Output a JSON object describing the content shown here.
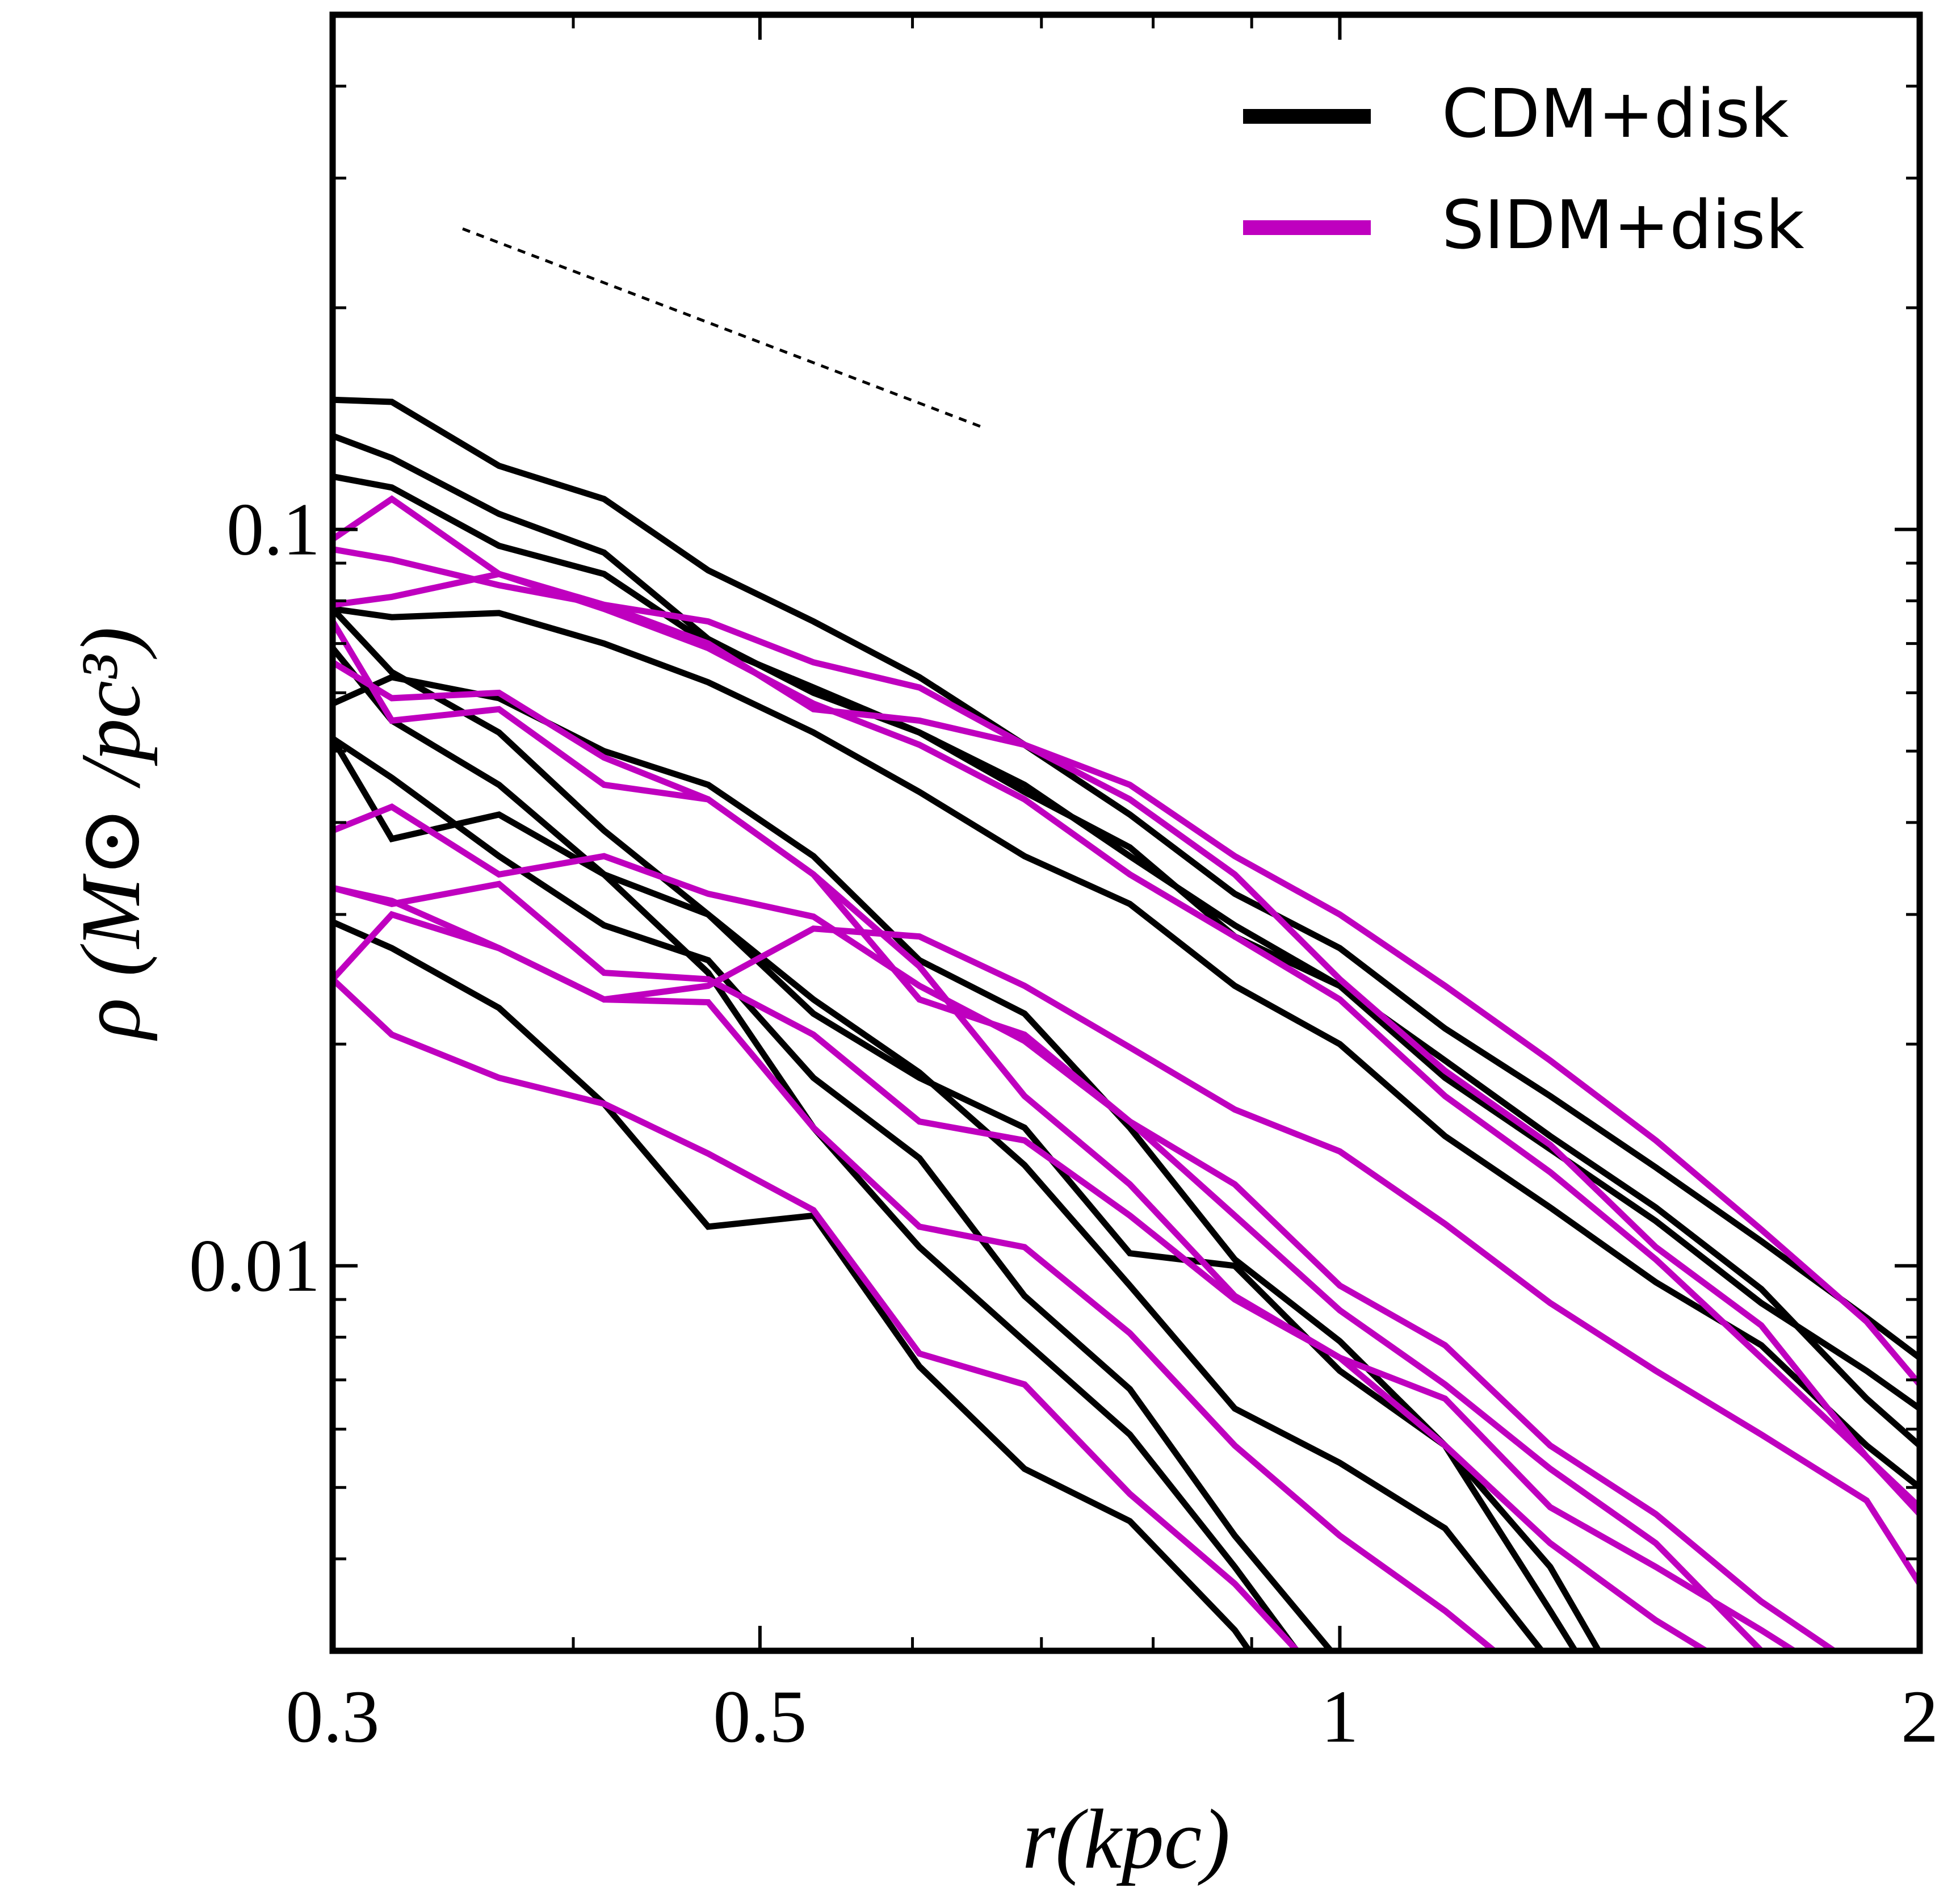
{
  "chart_data": {
    "type": "line",
    "x_label": "r(kpc)",
    "y_label": "ρ (M⊙ /pc³)",
    "xlog": true,
    "ylog": true,
    "xlim": [
      0.3,
      2
    ],
    "ylim": [
      0.003,
      0.5
    ],
    "xticks": [
      0.3,
      0.5,
      1,
      2
    ],
    "xminorticks": [
      0.4,
      0.6,
      0.7,
      0.8,
      0.9
    ],
    "yticks": [
      0.01,
      0.1
    ],
    "yminorticks": [
      0.004,
      0.005,
      0.006,
      0.007,
      0.008,
      0.009,
      0.02,
      0.03,
      0.04,
      0.05,
      0.06,
      0.07,
      0.08,
      0.09,
      0.2,
      0.3,
      0.4
    ],
    "legend": "upper right",
    "x": [
      0.3,
      0.322,
      0.366,
      0.415,
      0.47,
      0.533,
      0.605,
      0.686,
      0.778,
      0.882,
      1.0,
      1.134,
      1.286,
      1.459,
      1.655,
      1.877,
      2.0
    ],
    "series": [
      {
        "name": "CDM+disk",
        "color": "#000000",
        "lines": [
          [
            0.15,
            0.149,
            0.122,
            0.11,
            0.088,
            0.075,
            0.063,
            0.051,
            0.041,
            0.032,
            0.027,
            0.021,
            0.017,
            0.0136,
            0.0108,
            0.0085,
            0.0075
          ],
          [
            0.134,
            0.125,
            0.105,
            0.093,
            0.071,
            0.06,
            0.053,
            0.045,
            0.036,
            0.029,
            0.024,
            0.018,
            0.0144,
            0.0115,
            0.0089,
            0.0072,
            0.0064
          ],
          [
            0.118,
            0.114,
            0.095,
            0.087,
            0.07,
            0.061,
            0.053,
            0.044,
            0.037,
            0.028,
            0.024,
            0.019,
            0.015,
            0.012,
            0.0093,
            0.0066,
            0.0057
          ],
          [
            0.078,
            0.076,
            0.077,
            0.07,
            0.062,
            0.053,
            0.044,
            0.036,
            0.031,
            0.024,
            0.02,
            0.015,
            0.012,
            0.0095,
            0.0078,
            0.0057,
            0.005
          ],
          [
            0.058,
            0.063,
            0.059,
            0.05,
            0.045,
            0.036,
            0.026,
            0.022,
            0.0154,
            0.0102,
            0.0079,
            0.0057,
            0.0034,
            0.002,
            null,
            null,
            null
          ],
          [
            0.078,
            0.064,
            0.053,
            0.039,
            0.03,
            0.022,
            0.018,
            0.0154,
            0.0104,
            0.01,
            0.0072,
            0.0057,
            0.0039,
            0.0022,
            null,
            null,
            null
          ],
          [
            0.052,
            0.046,
            0.036,
            0.029,
            0.026,
            0.018,
            0.014,
            0.0091,
            0.0068,
            0.0043,
            0.0029,
            null,
            null,
            null,
            null,
            null,
            null
          ],
          [
            0.069,
            0.055,
            0.045,
            0.034,
            0.025,
            0.0154,
            0.0106,
            0.0079,
            0.0059,
            0.0039,
            0.0025,
            null,
            null,
            null,
            null,
            null,
            null
          ],
          [
            0.0293,
            0.027,
            0.0224,
            0.0166,
            0.0113,
            0.0117,
            0.0073,
            0.0053,
            0.0045,
            0.0032,
            0.002,
            null,
            null,
            null,
            null,
            null,
            null
          ],
          [
            0.052,
            0.038,
            0.041,
            0.034,
            0.03,
            0.023,
            0.0183,
            0.0137,
            0.0094,
            0.0064,
            0.0054,
            0.0044,
            0.0029,
            null,
            null,
            null,
            null
          ]
        ]
      },
      {
        "name": "SIDM+disk",
        "color": "#bf00bf",
        "lines": [
          [
            0.097,
            0.11,
            0.087,
            0.079,
            0.075,
            0.066,
            0.061,
            0.051,
            0.045,
            0.036,
            0.03,
            0.024,
            0.019,
            0.0148,
            0.0112,
            0.0084,
            0.0069
          ],
          [
            0.094,
            0.091,
            0.084,
            0.079,
            0.07,
            0.057,
            0.055,
            0.051,
            0.043,
            0.034,
            0.0245,
            0.0184,
            0.0146,
            0.0106,
            0.0083,
            0.0055,
            0.0046
          ],
          [
            0.079,
            0.081,
            0.087,
            0.078,
            0.069,
            0.058,
            0.051,
            0.043,
            0.034,
            0.028,
            0.023,
            0.017,
            0.0134,
            0.0102,
            0.0075,
            0.0055,
            0.0047
          ],
          [
            0.075,
            0.055,
            0.057,
            0.045,
            0.043,
            0.034,
            0.023,
            0.0206,
            0.0157,
            0.0117,
            0.0087,
            0.0069,
            0.0053,
            0.0042,
            0.003,
            null,
            null
          ],
          [
            0.066,
            0.059,
            0.06,
            0.049,
            0.043,
            0.034,
            0.0255,
            0.017,
            0.0129,
            0.0091,
            0.0075,
            0.0057,
            0.0042,
            0.0033,
            0.0027,
            null,
            null
          ],
          [
            0.039,
            0.042,
            0.034,
            0.036,
            0.032,
            0.0298,
            0.024,
            0.0202,
            0.0157,
            0.0129,
            0.0094,
            0.0078,
            0.0057,
            0.0046,
            0.0035,
            0.0028,
            null
          ],
          [
            0.0326,
            0.031,
            0.033,
            0.025,
            0.0245,
            0.0206,
            0.0157,
            0.0148,
            0.0117,
            0.009,
            0.0075,
            0.0066,
            0.0047,
            0.0039,
            0.0032,
            0.0026,
            null
          ],
          [
            0.0245,
            0.03,
            0.027,
            0.023,
            0.024,
            0.0287,
            0.028,
            0.024,
            0.0198,
            0.0163,
            0.0143,
            0.0114,
            0.0089,
            0.0072,
            0.0059,
            0.0048,
            0.0037
          ],
          [
            0.0326,
            0.0313,
            0.027,
            0.023,
            0.0228,
            0.0154,
            0.0113,
            0.0106,
            0.0081,
            0.0057,
            0.0043,
            0.0034,
            0.0026,
            null,
            null,
            null,
            null
          ],
          [
            0.0245,
            0.0206,
            0.018,
            0.0166,
            0.0142,
            0.0119,
            0.0076,
            0.0069,
            0.0049,
            0.0037,
            0.0026,
            null,
            null,
            null,
            null,
            null,
            null
          ]
        ]
      }
    ]
  }
}
